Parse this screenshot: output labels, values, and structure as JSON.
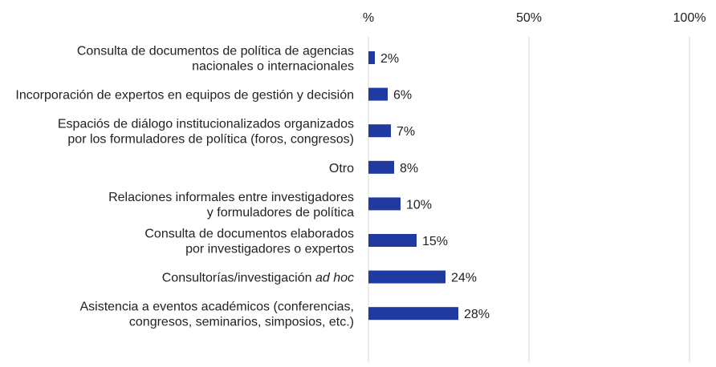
{
  "chart_data": {
    "type": "bar",
    "orientation": "horizontal",
    "categories": [
      [
        "Consulta de documentos de política de agencias",
        "nacionales o internacionales"
      ],
      [
        "Incorporación de expertos en equipos de gestión y decisión"
      ],
      [
        "Espaciós de diálogo institucionalizados organizados",
        "por los formuladores de política (foros, congresos)"
      ],
      [
        "Otro"
      ],
      [
        "Relaciones informales entre investigadores",
        "y formuladores de política"
      ],
      [
        "Consulta de documentos elaborados",
        "por investigadores o expertos"
      ],
      [
        "Consultorías/investigación ",
        "ad hoc"
      ],
      [
        "Asistencia a eventos académicos (conferencias,",
        "congresos, seminarios, simposios, etc.)"
      ]
    ],
    "values": [
      2,
      6,
      7,
      8,
      10,
      15,
      24,
      28
    ],
    "value_labels": [
      "2%",
      "6%",
      "7%",
      "8%",
      "10%",
      "15%",
      "24%",
      "28%"
    ],
    "x_ticks": [
      "%",
      "50%",
      "100%"
    ],
    "xlim": [
      0,
      100
    ],
    "x_axis_position": "top",
    "grid": true,
    "bar_color": "#1f3aa0"
  }
}
